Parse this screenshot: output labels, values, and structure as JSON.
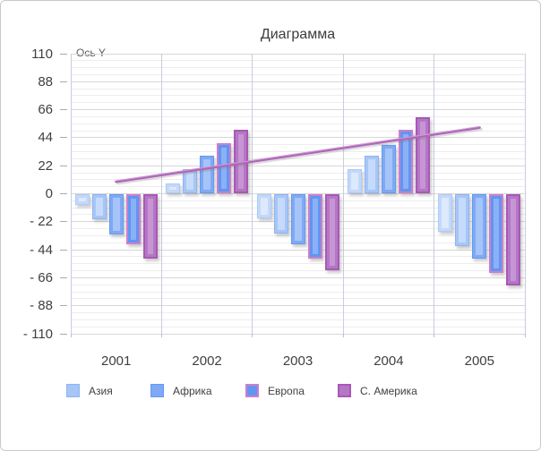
{
  "chart_data": {
    "type": "bar",
    "title": "Диаграмма",
    "y_axis_title": "Ось Y",
    "categories": [
      "2001",
      "2002",
      "2003",
      "2004",
      "2005"
    ],
    "ylim": [
      -110,
      110
    ],
    "y_major_unit": 22,
    "y_minor_unit": 5.5,
    "grid": "major-and-minor horizontal, vertical category boundaries",
    "legend_position": "bottom",
    "y_ticks": [
      {
        "v": 110,
        "label": "110"
      },
      {
        "v": 88,
        "label": "88"
      },
      {
        "v": 66,
        "label": "66"
      },
      {
        "v": 44,
        "label": "44"
      },
      {
        "v": 22,
        "label": "22"
      },
      {
        "v": 0,
        "label": "0"
      },
      {
        "v": -22,
        "label": "- 22"
      },
      {
        "v": -44,
        "label": "- 44"
      },
      {
        "v": -66,
        "label": "- 66"
      },
      {
        "v": -88,
        "label": "- 88"
      },
      {
        "v": -110,
        "label": "- 110"
      }
    ],
    "series": [
      {
        "name": "",
        "in_legend": false,
        "fill": "#c3d8fa",
        "border": "#aecbf5",
        "inner": "#dde9fc",
        "border_width": 1,
        "values": [
          -9,
          8,
          -19,
          19,
          -30
        ]
      },
      {
        "name": "Азия",
        "in_legend": true,
        "fill": "#a6c6f7",
        "border": "#8fb4f2",
        "inner": "#c6dafb",
        "border_width": 1,
        "values": [
          -20,
          19,
          -31,
          30,
          -41
        ]
      },
      {
        "name": "Африка",
        "in_legend": true,
        "fill": "#7fa9f5",
        "border": "#639af2",
        "inner": "#a6c4f8",
        "border_width": 1,
        "values": [
          -32,
          30,
          -40,
          38,
          -51
        ]
      },
      {
        "name": "Европа",
        "in_legend": true,
        "fill": "#6095f2",
        "border": "#cd7fca",
        "inner": "#8ab0f6",
        "border_width": 2,
        "values": [
          -40,
          40,
          -51,
          50,
          -62
        ]
      },
      {
        "name": "С. Америка",
        "in_legend": true,
        "fill": "#b377c6",
        "border": "#a958b4",
        "inner": "#c795d4",
        "border_width": 2,
        "values": [
          -51,
          50,
          -60,
          60,
          -72
        ]
      }
    ],
    "trendline": {
      "type": "linear",
      "color": "#b165ba",
      "highlight": "#d2a4d8",
      "start": {
        "category_index": 0,
        "value": 9.5
      },
      "end": {
        "category_index": 4,
        "value": 52
      }
    },
    "legend": [
      {
        "label": "Азия"
      },
      {
        "label": "Африка"
      },
      {
        "label": "Европа"
      },
      {
        "label": "С. Америка"
      }
    ]
  }
}
